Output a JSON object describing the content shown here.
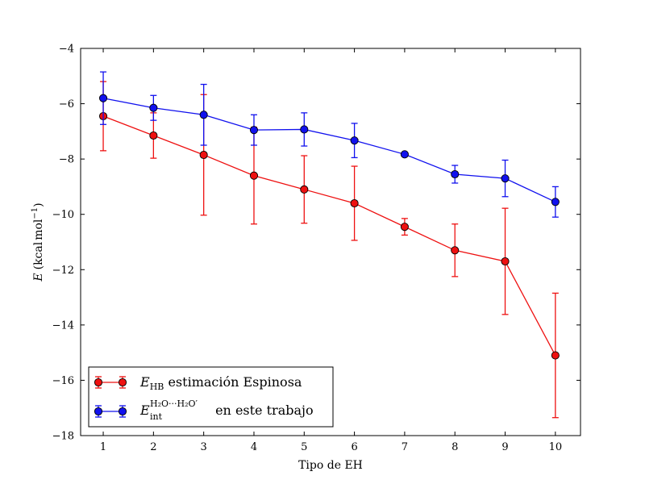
{
  "chart_data": {
    "type": "line",
    "x": [
      1,
      2,
      3,
      4,
      5,
      6,
      7,
      8,
      9,
      10
    ],
    "xlabel": "Tipo de EH",
    "xlim": [
      0.55,
      10.5
    ],
    "xticks": [
      "1",
      "2",
      "3",
      "4",
      "5",
      "6",
      "7",
      "8",
      "9",
      "10"
    ],
    "ylabel": {
      "symbol": "E",
      "unit_open": "(kcal",
      "unit_mid": "mol",
      "unit_exp": "−1",
      "unit_close": ")"
    },
    "ylim": [
      -18,
      -4
    ],
    "yticks": [
      "−18",
      "−16",
      "−14",
      "−12",
      "−10",
      "−8",
      "−6",
      "−4"
    ],
    "grid": false,
    "legend_position": "lower-left",
    "series": [
      {
        "label": {
          "symbol": "E",
          "sub": "HB",
          "text": " estimación Espinosa"
        },
        "color": "#ee1111",
        "values": [
          -6.45,
          -7.15,
          -7.85,
          -8.6,
          -9.1,
          -9.6,
          -10.45,
          -11.3,
          -11.7,
          -15.1
        ],
        "errors": [
          1.25,
          0.82,
          2.18,
          1.75,
          1.22,
          1.34,
          0.3,
          0.95,
          1.92,
          2.25
        ]
      },
      {
        "label": {
          "symbol": "E",
          "sub": "int",
          "sup": "H₂O···H₂O′",
          "text": " en este trabajo"
        },
        "color": "#1111ee",
        "values": [
          -5.8,
          -6.15,
          -6.4,
          -6.95,
          -6.93,
          -7.33,
          -7.83,
          -8.55,
          -8.7,
          -9.55
        ],
        "errors": [
          0.95,
          0.45,
          1.1,
          0.55,
          0.6,
          0.62,
          0.0,
          0.32,
          0.66,
          0.55
        ]
      }
    ]
  }
}
